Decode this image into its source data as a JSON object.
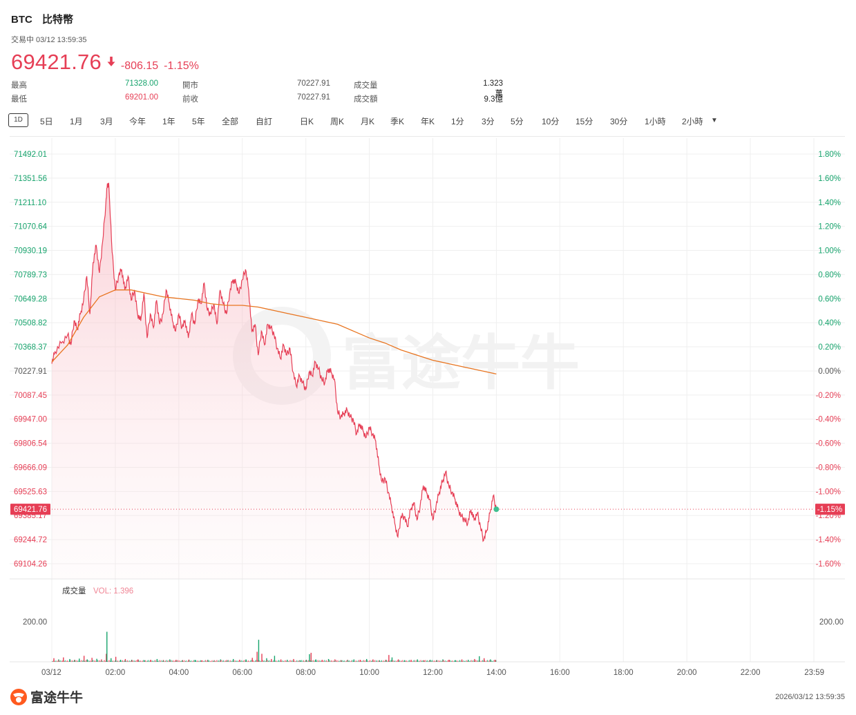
{
  "header": {
    "symbol": "BTC",
    "name": "比特幣",
    "status": "交易中 03/12 13:59:35",
    "price": "69421.76",
    "change": "-806.15",
    "change_pct": "-1.15%"
  },
  "stats": [
    {
      "label": "最高",
      "value": "71328.00",
      "tone": "green"
    },
    {
      "label": "最低",
      "value": "69201.00",
      "tone": "red"
    },
    {
      "label": "開市",
      "value": "70227.91",
      "tone": "gray"
    },
    {
      "label": "前收",
      "value": "70227.91",
      "tone": "gray"
    },
    {
      "label": "成交量",
      "value": "1.323萬",
      "tone": "dark"
    },
    {
      "label": "成交額",
      "value": "9.3億",
      "tone": "dark"
    }
  ],
  "tabs": [
    "1D",
    "5日",
    "1月",
    "3月",
    "今年",
    "1年",
    "5年",
    "全部",
    "自訂",
    "日K",
    "周K",
    "月K",
    "季K",
    "年K",
    "1分",
    "3分",
    "5分",
    "10分",
    "15分",
    "30分",
    "1小時",
    "2小時"
  ],
  "colors": {
    "up": "#16a36c",
    "down": "#e63e55",
    "avg": "#e8741f",
    "grid": "#eeeeee"
  },
  "chart_data": {
    "type": "line",
    "title": "",
    "y_ticks_left": [
      "71492.01",
      "71351.56",
      "71211.10",
      "71070.64",
      "70930.19",
      "70789.73",
      "70649.28",
      "70508.82",
      "70368.37",
      "70227.91",
      "70087.45",
      "69947.00",
      "69806.54",
      "69666.09",
      "69525.63",
      "69385.17",
      "69244.72",
      "69104.26"
    ],
    "y_ticks_right": [
      "1.80%",
      "1.60%",
      "1.40%",
      "1.20%",
      "1.00%",
      "0.80%",
      "0.60%",
      "0.40%",
      "0.20%",
      "0.00%",
      "-0.20%",
      "-0.40%",
      "-0.60%",
      "-0.80%",
      "-1.00%",
      "-1.20%",
      "-1.40%",
      "-1.60%"
    ],
    "x_ticks": [
      "03/12",
      "02:00",
      "04:00",
      "06:00",
      "08:00",
      "10:00",
      "12:00",
      "14:00",
      "16:00",
      "18:00",
      "20:00",
      "22:00",
      "23:59"
    ],
    "ylim": [
      69104.26,
      71492.01
    ],
    "xlim_hours": [
      0,
      24
    ],
    "current_price_label": "69421.76",
    "current_pct_label": "-1.15%",
    "price_series": [
      [
        0.0,
        70270
      ],
      [
        0.1,
        70340
      ],
      [
        0.3,
        70390
      ],
      [
        0.5,
        70440
      ],
      [
        0.6,
        70380
      ],
      [
        0.7,
        70520
      ],
      [
        0.8,
        70470
      ],
      [
        0.9,
        70560
      ],
      [
        1.0,
        70640
      ],
      [
        1.1,
        70780
      ],
      [
        1.2,
        70560
      ],
      [
        1.3,
        70860
      ],
      [
        1.4,
        70960
      ],
      [
        1.5,
        70800
      ],
      [
        1.6,
        70980
      ],
      [
        1.7,
        71200
      ],
      [
        1.75,
        71320
      ],
      [
        1.8,
        71300
      ],
      [
        1.9,
        70920
      ],
      [
        2.0,
        70700
      ],
      [
        2.1,
        70780
      ],
      [
        2.2,
        70820
      ],
      [
        2.3,
        70700
      ],
      [
        2.4,
        70780
      ],
      [
        2.5,
        70640
      ],
      [
        2.6,
        70700
      ],
      [
        2.7,
        70560
      ],
      [
        2.8,
        70520
      ],
      [
        2.9,
        70680
      ],
      [
        3.0,
        70420
      ],
      [
        3.1,
        70560
      ],
      [
        3.2,
        70480
      ],
      [
        3.3,
        70640
      ],
      [
        3.4,
        70500
      ],
      [
        3.5,
        70560
      ],
      [
        3.6,
        70700
      ],
      [
        3.7,
        70620
      ],
      [
        3.8,
        70520
      ],
      [
        3.9,
        70460
      ],
      [
        4.0,
        70560
      ],
      [
        4.1,
        70480
      ],
      [
        4.2,
        70520
      ],
      [
        4.3,
        70420
      ],
      [
        4.4,
        70560
      ],
      [
        4.5,
        70500
      ],
      [
        4.6,
        70640
      ],
      [
        4.7,
        70620
      ],
      [
        4.8,
        70740
      ],
      [
        4.9,
        70580
      ],
      [
        5.0,
        70560
      ],
      [
        5.1,
        70620
      ],
      [
        5.2,
        70500
      ],
      [
        5.3,
        70700
      ],
      [
        5.4,
        70620
      ],
      [
        5.5,
        70560
      ],
      [
        5.6,
        70680
      ],
      [
        5.7,
        70760
      ],
      [
        5.8,
        70740
      ],
      [
        5.9,
        70680
      ],
      [
        6.0,
        70760
      ],
      [
        6.1,
        70820
      ],
      [
        6.2,
        70700
      ],
      [
        6.3,
        70460
      ],
      [
        6.4,
        70500
      ],
      [
        6.5,
        70320
      ],
      [
        6.6,
        70460
      ],
      [
        6.7,
        70380
      ],
      [
        6.8,
        70500
      ],
      [
        6.9,
        70480
      ],
      [
        7.0,
        70440
      ],
      [
        7.1,
        70360
      ],
      [
        7.2,
        70300
      ],
      [
        7.3,
        70380
      ],
      [
        7.4,
        70320
      ],
      [
        7.5,
        70360
      ],
      [
        7.6,
        70220
      ],
      [
        7.7,
        70140
      ],
      [
        7.8,
        70200
      ],
      [
        7.9,
        70160
      ],
      [
        8.0,
        70120
      ],
      [
        8.1,
        70220
      ],
      [
        8.2,
        70200
      ],
      [
        8.3,
        70280
      ],
      [
        8.4,
        70240
      ],
      [
        8.5,
        70180
      ],
      [
        8.6,
        70160
      ],
      [
        8.7,
        70240
      ],
      [
        8.8,
        70220
      ],
      [
        8.9,
        70180
      ],
      [
        9.0,
        69990
      ],
      [
        9.1,
        69960
      ],
      [
        9.2,
        69980
      ],
      [
        9.3,
        70000
      ],
      [
        9.4,
        69960
      ],
      [
        9.5,
        69940
      ],
      [
        9.6,
        69860
      ],
      [
        9.7,
        69920
      ],
      [
        9.8,
        69880
      ],
      [
        9.9,
        69840
      ],
      [
        10.0,
        69900
      ],
      [
        10.1,
        69860
      ],
      [
        10.2,
        69820
      ],
      [
        10.3,
        69680
      ],
      [
        10.4,
        69580
      ],
      [
        10.5,
        69600
      ],
      [
        10.6,
        69520
      ],
      [
        10.7,
        69440
      ],
      [
        10.8,
        69340
      ],
      [
        10.9,
        69260
      ],
      [
        11.0,
        69380
      ],
      [
        11.1,
        69380
      ],
      [
        11.2,
        69320
      ],
      [
        11.3,
        69420
      ],
      [
        11.4,
        69460
      ],
      [
        11.5,
        69360
      ],
      [
        11.6,
        69440
      ],
      [
        11.7,
        69560
      ],
      [
        11.8,
        69520
      ],
      [
        11.9,
        69480
      ],
      [
        12.0,
        69360
      ],
      [
        12.1,
        69440
      ],
      [
        12.2,
        69520
      ],
      [
        12.3,
        69580
      ],
      [
        12.4,
        69640
      ],
      [
        12.5,
        69560
      ],
      [
        12.6,
        69520
      ],
      [
        12.7,
        69480
      ],
      [
        12.8,
        69420
      ],
      [
        12.9,
        69380
      ],
      [
        13.0,
        69360
      ],
      [
        13.1,
        69340
      ],
      [
        13.2,
        69420
      ],
      [
        13.3,
        69360
      ],
      [
        13.4,
        69400
      ],
      [
        13.5,
        69320
      ],
      [
        13.6,
        69240
      ],
      [
        13.7,
        69300
      ],
      [
        13.8,
        69400
      ],
      [
        13.9,
        69500
      ],
      [
        14.0,
        69421.76
      ]
    ],
    "avg_series": [
      [
        0.0,
        70280
      ],
      [
        0.5,
        70380
      ],
      [
        1.0,
        70540
      ],
      [
        1.5,
        70660
      ],
      [
        2.0,
        70700
      ],
      [
        2.5,
        70700
      ],
      [
        3.0,
        70680
      ],
      [
        3.5,
        70660
      ],
      [
        4.0,
        70650
      ],
      [
        4.5,
        70640
      ],
      [
        5.0,
        70620
      ],
      [
        5.5,
        70610
      ],
      [
        6.0,
        70610
      ],
      [
        6.5,
        70600
      ],
      [
        7.0,
        70580
      ],
      [
        7.5,
        70560
      ],
      [
        8.0,
        70540
      ],
      [
        8.5,
        70520
      ],
      [
        9.0,
        70500
      ],
      [
        9.5,
        70460
      ],
      [
        10.0,
        70420
      ],
      [
        10.5,
        70390
      ],
      [
        11.0,
        70350
      ],
      [
        11.5,
        70320
      ],
      [
        12.0,
        70290
      ],
      [
        12.5,
        70270
      ],
      [
        13.0,
        70250
      ],
      [
        13.5,
        70230
      ],
      [
        14.0,
        70210
      ]
    ],
    "volume_label": "成交量",
    "volume_value_label": "VOL: 1.396",
    "volume_tick": "200.00",
    "volume_series": [
      [
        0.05,
        18,
        "r"
      ],
      [
        0.2,
        12,
        "g"
      ],
      [
        0.35,
        22,
        "r"
      ],
      [
        0.55,
        14,
        "g"
      ],
      [
        0.7,
        10,
        "r"
      ],
      [
        0.85,
        16,
        "g"
      ],
      [
        1.0,
        30,
        "r"
      ],
      [
        1.1,
        12,
        "g"
      ],
      [
        1.25,
        20,
        "r"
      ],
      [
        1.4,
        15,
        "g"
      ],
      [
        1.55,
        12,
        "r"
      ],
      [
        1.7,
        40,
        "r"
      ],
      [
        1.72,
        150,
        "g"
      ],
      [
        1.85,
        18,
        "g"
      ],
      [
        2.0,
        25,
        "r"
      ],
      [
        2.15,
        10,
        "g"
      ],
      [
        2.3,
        14,
        "r"
      ],
      [
        2.5,
        10,
        "g"
      ],
      [
        2.7,
        12,
        "r"
      ],
      [
        2.9,
        8,
        "g"
      ],
      [
        3.1,
        10,
        "r"
      ],
      [
        3.3,
        14,
        "g"
      ],
      [
        3.5,
        9,
        "r"
      ],
      [
        3.7,
        12,
        "g"
      ],
      [
        3.9,
        10,
        "r"
      ],
      [
        4.1,
        8,
        "g"
      ],
      [
        4.3,
        11,
        "r"
      ],
      [
        4.5,
        9,
        "g"
      ],
      [
        4.7,
        7,
        "r"
      ],
      [
        4.9,
        10,
        "g"
      ],
      [
        5.1,
        8,
        "r"
      ],
      [
        5.3,
        12,
        "g"
      ],
      [
        5.5,
        9,
        "r"
      ],
      [
        5.7,
        14,
        "g"
      ],
      [
        5.9,
        10,
        "r"
      ],
      [
        6.1,
        12,
        "g"
      ],
      [
        6.3,
        20,
        "r"
      ],
      [
        6.45,
        50,
        "r"
      ],
      [
        6.5,
        110,
        "g"
      ],
      [
        6.6,
        40,
        "r"
      ],
      [
        6.75,
        18,
        "g"
      ],
      [
        6.9,
        14,
        "r"
      ],
      [
        7.0,
        30,
        "g"
      ],
      [
        7.2,
        12,
        "r"
      ],
      [
        7.4,
        10,
        "g"
      ],
      [
        7.6,
        14,
        "r"
      ],
      [
        7.8,
        8,
        "g"
      ],
      [
        8.0,
        10,
        "r"
      ],
      [
        8.1,
        38,
        "g"
      ],
      [
        8.15,
        45,
        "r"
      ],
      [
        8.3,
        12,
        "g"
      ],
      [
        8.5,
        10,
        "r"
      ],
      [
        8.7,
        14,
        "g"
      ],
      [
        8.9,
        12,
        "r"
      ],
      [
        9.1,
        8,
        "g"
      ],
      [
        9.3,
        10,
        "r"
      ],
      [
        9.5,
        12,
        "g"
      ],
      [
        9.7,
        10,
        "r"
      ],
      [
        9.9,
        14,
        "g"
      ],
      [
        10.1,
        12,
        "r"
      ],
      [
        10.3,
        8,
        "g"
      ],
      [
        10.5,
        10,
        "r"
      ],
      [
        10.6,
        34,
        "r"
      ],
      [
        10.7,
        22,
        "g"
      ],
      [
        10.9,
        12,
        "r"
      ],
      [
        11.1,
        8,
        "g"
      ],
      [
        11.3,
        10,
        "r"
      ],
      [
        11.5,
        12,
        "g"
      ],
      [
        11.7,
        8,
        "r"
      ],
      [
        11.9,
        10,
        "g"
      ],
      [
        12.1,
        8,
        "r"
      ],
      [
        12.3,
        12,
        "g"
      ],
      [
        12.5,
        10,
        "r"
      ],
      [
        12.7,
        8,
        "g"
      ],
      [
        12.9,
        12,
        "r"
      ],
      [
        13.1,
        10,
        "g"
      ],
      [
        13.3,
        14,
        "r"
      ],
      [
        13.45,
        28,
        "g"
      ],
      [
        13.6,
        18,
        "r"
      ],
      [
        13.8,
        12,
        "g"
      ],
      [
        13.95,
        10,
        "r"
      ]
    ]
  },
  "footer": {
    "logo": "富途牛牛",
    "timestamp": "2026/03/12 13:59:35"
  },
  "watermark": "富途牛牛"
}
